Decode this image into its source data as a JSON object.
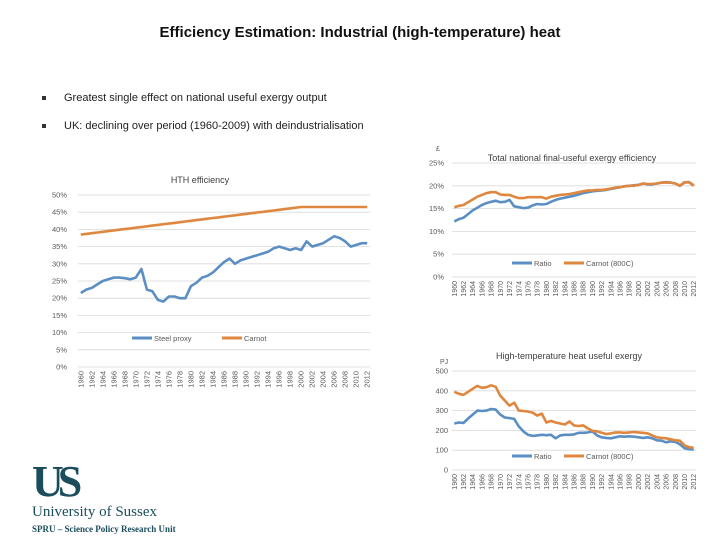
{
  "slide": {
    "title": "Efficiency Estimation: Industrial (high-temperature) heat",
    "bullets": [
      "Greatest single effect on national useful exergy output",
      "UK: declining over period (1960-2009) with deindustrialisation"
    ],
    "logo": {
      "mark": "US",
      "name": "University of Sussex",
      "unit": "SPRU – Science Policy Research Unit"
    }
  },
  "colors": {
    "blue": "#5b8fc4",
    "orange": "#e0873f",
    "grid": "#d9d9d9",
    "text": "#595959"
  },
  "chart_data": [
    {
      "id": "hth",
      "type": "line",
      "title": "HTH efficiency",
      "xlabel": "",
      "ylabel": "",
      "ylim": [
        0,
        0.5
      ],
      "yticks": [
        0,
        0.05,
        0.1,
        0.15,
        0.2,
        0.25,
        0.3,
        0.35,
        0.4,
        0.45,
        0.5
      ],
      "ytick_labels": [
        "0%",
        "5%",
        "10%",
        "15%",
        "20%",
        "25%",
        "30%",
        "35%",
        "40%",
        "45%",
        "50%"
      ],
      "x_start": 1960,
      "x_end": 2012,
      "xtick_labels": [
        "1960",
        "1962",
        "1964",
        "1966",
        "1968",
        "1970",
        "1972",
        "1974",
        "1976",
        "1978",
        "1980",
        "1982",
        "1984",
        "1986",
        "1988",
        "1990",
        "1992",
        "1994",
        "1996",
        "1998",
        "2000",
        "2002",
        "2004",
        "2006",
        "2008",
        "2010",
        "2012"
      ],
      "grid": true,
      "legend": "bottom-center",
      "series": [
        {
          "name": "Steel proxy",
          "color": "#5b8fc4",
          "values": [
            0.215,
            0.225,
            0.23,
            0.24,
            0.25,
            0.255,
            0.26,
            0.26,
            0.258,
            0.255,
            0.26,
            0.285,
            0.225,
            0.22,
            0.195,
            0.19,
            0.205,
            0.205,
            0.2,
            0.2,
            0.235,
            0.245,
            0.26,
            0.265,
            0.275,
            0.29,
            0.305,
            0.315,
            0.3,
            0.31,
            0.315,
            0.32,
            0.325,
            0.33,
            0.335,
            0.345,
            0.35,
            0.345,
            0.34,
            0.345,
            0.34,
            0.365,
            0.35,
            0.355,
            0.36,
            0.37,
            0.38,
            0.375,
            0.365,
            0.35,
            0.355,
            0.36,
            0.36
          ]
        },
        {
          "name": "Carnot",
          "color": "#e0873f",
          "values": [
            0.385,
            0.387,
            0.389,
            0.391,
            0.393,
            0.395,
            0.397,
            0.399,
            0.401,
            0.403,
            0.405,
            0.407,
            0.409,
            0.411,
            0.413,
            0.415,
            0.417,
            0.419,
            0.421,
            0.423,
            0.425,
            0.427,
            0.429,
            0.431,
            0.433,
            0.435,
            0.437,
            0.439,
            0.441,
            0.443,
            0.445,
            0.447,
            0.449,
            0.451,
            0.453,
            0.455,
            0.457,
            0.459,
            0.461,
            0.463,
            0.465,
            0.465,
            0.465,
            0.465,
            0.465,
            0.465,
            0.465,
            0.465,
            0.465,
            0.465,
            0.465,
            0.465,
            0.465
          ]
        }
      ]
    },
    {
      "id": "national",
      "type": "line",
      "title": "Total national final-useful exergy efficiency",
      "axis_unit_label": "£",
      "xlabel": "",
      "ylabel": "",
      "ylim": [
        0,
        0.25
      ],
      "yticks": [
        0,
        0.05,
        0.1,
        0.15,
        0.2,
        0.25
      ],
      "ytick_labels": [
        "0%",
        "5%",
        "10%",
        "15%",
        "20%",
        "25%"
      ],
      "x_start": 1960,
      "x_end": 2012,
      "xtick_labels": [
        "1960",
        "1962",
        "1964",
        "1966",
        "1968",
        "1970",
        "1972",
        "1974",
        "1976",
        "1978",
        "1980",
        "1982",
        "1984",
        "1986",
        "1988",
        "1990",
        "1992",
        "1994",
        "1996",
        "1998",
        "2000",
        "2002",
        "2004",
        "2006",
        "2008",
        "2010",
        "2012"
      ],
      "grid": true,
      "legend": "bottom-center",
      "series": [
        {
          "name": "Ratio",
          "color": "#5b8fc4",
          "values": [
            0.122,
            0.127,
            0.13,
            0.138,
            0.146,
            0.152,
            0.158,
            0.162,
            0.165,
            0.167,
            0.164,
            0.165,
            0.169,
            0.155,
            0.153,
            0.151,
            0.152,
            0.157,
            0.16,
            0.159,
            0.16,
            0.165,
            0.169,
            0.172,
            0.174,
            0.176,
            0.178,
            0.181,
            0.184,
            0.186,
            0.188,
            0.189,
            0.19,
            0.191,
            0.193,
            0.195,
            0.197,
            0.199,
            0.2,
            0.201,
            0.202,
            0.205,
            0.203,
            0.203,
            0.205,
            0.207,
            0.208,
            0.207,
            0.205,
            0.2,
            0.207,
            0.208,
            0.201
          ]
        },
        {
          "name": "Carnot (800C)",
          "color": "#e0873f",
          "values": [
            0.153,
            0.156,
            0.158,
            0.164,
            0.17,
            0.176,
            0.18,
            0.184,
            0.186,
            0.186,
            0.181,
            0.18,
            0.18,
            0.176,
            0.173,
            0.173,
            0.175,
            0.175,
            0.175,
            0.175,
            0.172,
            0.176,
            0.178,
            0.18,
            0.181,
            0.182,
            0.184,
            0.186,
            0.188,
            0.19,
            0.19,
            0.191,
            0.191,
            0.192,
            0.194,
            0.196,
            0.197,
            0.199,
            0.2,
            0.2,
            0.202,
            0.205,
            0.204,
            0.204,
            0.205,
            0.207,
            0.207,
            0.207,
            0.205,
            0.2,
            0.208,
            0.208,
            0.2
          ]
        }
      ]
    },
    {
      "id": "useful",
      "type": "line",
      "title": "High-temperature heat useful exergy",
      "axis_unit_label": "PJ",
      "xlabel": "",
      "ylabel": "PJ",
      "ylim": [
        0,
        500
      ],
      "yticks": [
        0,
        100,
        200,
        300,
        400,
        500
      ],
      "ytick_labels": [
        "0",
        "100",
        "200",
        "300",
        "400",
        "500"
      ],
      "x_start": 1960,
      "x_end": 2012,
      "xtick_labels": [
        "1960",
        "1962",
        "1964",
        "1966",
        "1968",
        "1970",
        "1972",
        "1974",
        "1976",
        "1978",
        "1980",
        "1982",
        "1984",
        "1986",
        "1988",
        "1990",
        "1992",
        "1994",
        "1996",
        "1998",
        "2000",
        "2002",
        "2004",
        "2006",
        "2008",
        "2010",
        "2012"
      ],
      "grid": true,
      "legend": "bottom-center",
      "series": [
        {
          "name": "Ratio",
          "color": "#5b8fc4",
          "values": [
            235,
            240,
            238,
            260,
            280,
            300,
            298,
            300,
            308,
            305,
            280,
            265,
            262,
            258,
            220,
            195,
            178,
            172,
            175,
            178,
            176,
            178,
            160,
            175,
            178,
            178,
            180,
            188,
            188,
            190,
            195,
            175,
            165,
            162,
            160,
            165,
            170,
            168,
            170,
            168,
            165,
            162,
            165,
            160,
            150,
            148,
            140,
            145,
            142,
            130,
            110,
            105,
            103
          ]
        },
        {
          "name": "Carnot (800C)",
          "color": "#e0873f",
          "values": [
            395,
            385,
            380,
            395,
            410,
            425,
            415,
            418,
            428,
            420,
            375,
            350,
            325,
            340,
            300,
            298,
            295,
            290,
            275,
            285,
            240,
            248,
            240,
            235,
            230,
            245,
            225,
            222,
            225,
            210,
            198,
            195,
            188,
            182,
            185,
            190,
            190,
            188,
            190,
            192,
            190,
            188,
            185,
            175,
            165,
            162,
            160,
            155,
            150,
            148,
            125,
            115,
            112
          ]
        }
      ]
    }
  ]
}
